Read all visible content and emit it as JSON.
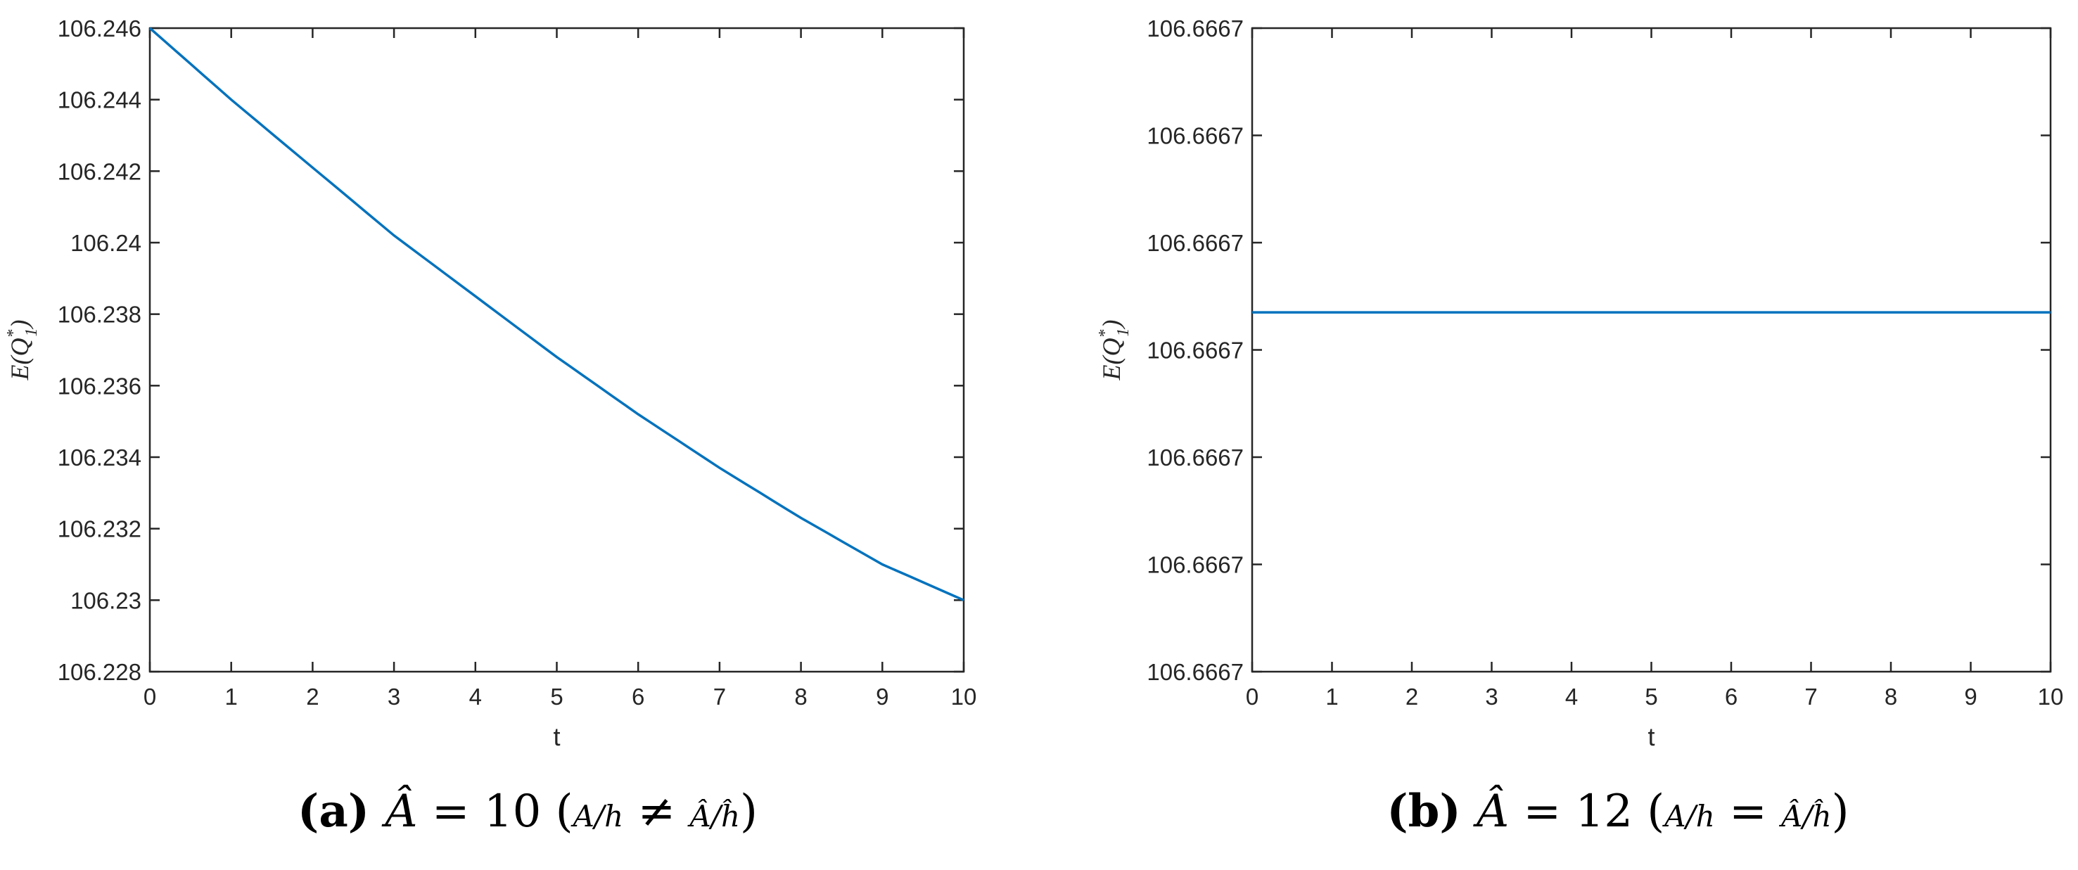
{
  "chart_data": [
    {
      "type": "line",
      "panel": "a",
      "caption": {
        "letter": "(a)",
        "lhs": "Â",
        "eq": "=",
        "value": "10",
        "paren_open": "(",
        "ratio": "A",
        "ratio_den": "h",
        "rel": "≠",
        "ratio_hat": "Â",
        "ratio_hat_den": "ĥ",
        "paren_close": ")"
      },
      "xlabel": "t",
      "ylabel": {
        "base": "E(Q",
        "sup": "*",
        "sub": "1",
        "close": ")"
      },
      "xlim": [
        0,
        10
      ],
      "ylim": [
        106.228,
        106.246
      ],
      "xticks": [
        "0",
        "1",
        "2",
        "3",
        "4",
        "5",
        "6",
        "7",
        "8",
        "9",
        "10"
      ],
      "yticks": [
        {
          "value": 106.228,
          "label": "106.228"
        },
        {
          "value": 106.23,
          "label": "106.23"
        },
        {
          "value": 106.232,
          "label": "106.232"
        },
        {
          "value": 106.234,
          "label": "106.234"
        },
        {
          "value": 106.236,
          "label": "106.236"
        },
        {
          "value": 106.238,
          "label": "106.238"
        },
        {
          "value": 106.24,
          "label": "106.24"
        },
        {
          "value": 106.242,
          "label": "106.242"
        },
        {
          "value": 106.244,
          "label": "106.244"
        },
        {
          "value": 106.246,
          "label": "106.246"
        }
      ],
      "grid": false,
      "series": [
        {
          "color": "#0072BD",
          "x": [
            0,
            1,
            2,
            3,
            4,
            5,
            6,
            7,
            8,
            9,
            10
          ],
          "y": [
            106.246,
            106.244,
            106.2421,
            106.2402,
            106.2385,
            106.2368,
            106.2352,
            106.2337,
            106.2323,
            106.231,
            106.23
          ]
        }
      ]
    },
    {
      "type": "line",
      "panel": "b",
      "caption": {
        "letter": "(b)",
        "lhs": "Â",
        "eq": "=",
        "value": "12",
        "paren_open": "(",
        "ratio": "A",
        "ratio_den": "h",
        "rel": "=",
        "ratio_hat": "Â",
        "ratio_hat_den": "ĥ",
        "paren_close": ")"
      },
      "xlabel": "t",
      "ylabel": {
        "base": "E(Q",
        "sup": "*",
        "sub": "1",
        "close": ")"
      },
      "xlim": [
        0,
        10
      ],
      "ylim": [
        0,
        6
      ],
      "xticks": [
        "0",
        "1",
        "2",
        "3",
        "4",
        "5",
        "6",
        "7",
        "8",
        "9",
        "10"
      ],
      "yticks": [
        {
          "value": 0,
          "label": "106.6667"
        },
        {
          "value": 1,
          "label": "106.6667"
        },
        {
          "value": 2,
          "label": "106.6667"
        },
        {
          "value": 3,
          "label": "106.6667"
        },
        {
          "value": 4,
          "label": "106.6667"
        },
        {
          "value": 5,
          "label": "106.6667"
        },
        {
          "value": 6,
          "label": "106.6667"
        }
      ],
      "grid": false,
      "series": [
        {
          "color": "#0072BD",
          "x": [
            0,
            10
          ],
          "y": [
            3.35,
            3.35
          ]
        }
      ]
    }
  ]
}
